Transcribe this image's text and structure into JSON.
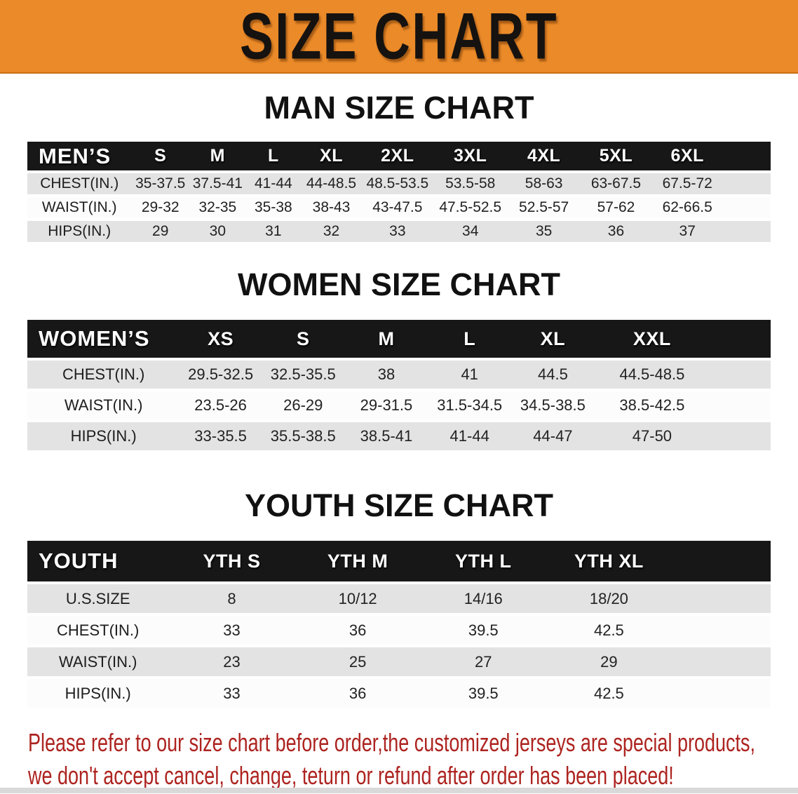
{
  "banner": {
    "title": "SIZE CHART",
    "bg_color": "#EB8A28"
  },
  "sections": {
    "men": {
      "title": "MAN SIZE CHART",
      "header_label": "MEN’S",
      "sizes": [
        "S",
        "M",
        "L",
        "XL",
        "2XL",
        "3XL",
        "4XL",
        "5XL",
        "6XL"
      ],
      "rows": [
        {
          "label": "CHEST(IN.)",
          "values": [
            "35-37.5",
            "37.5-41",
            "41-44",
            "44-48.5",
            "48.5-53.5",
            "53.5-58",
            "58-63",
            "63-67.5",
            "67.5-72"
          ]
        },
        {
          "label": "WAIST(IN.)",
          "values": [
            "29-32",
            "32-35",
            "35-38",
            "38-43",
            "43-47.5",
            "47.5-52.5",
            "52.5-57",
            "57-62",
            "62-66.5"
          ]
        },
        {
          "label": "HIPS(IN.)",
          "values": [
            "29",
            "30",
            "31",
            "32",
            "33",
            "34",
            "35",
            "36",
            "37"
          ]
        }
      ]
    },
    "women": {
      "title": "WOMEN SIZE CHART",
      "header_label": "WOMEN’S",
      "sizes": [
        "XS",
        "S",
        "M",
        "L",
        "XL",
        "XXL"
      ],
      "rows": [
        {
          "label": "CHEST(IN.)",
          "values": [
            "29.5-32.5",
            "32.5-35.5",
            "38",
            "41",
            "44.5",
            "44.5-48.5"
          ]
        },
        {
          "label": "WAIST(IN.)",
          "values": [
            "23.5-26",
            "26-29",
            "29-31.5",
            "31.5-34.5",
            "34.5-38.5",
            "38.5-42.5"
          ]
        },
        {
          "label": "HIPS(IN.)",
          "values": [
            "33-35.5",
            "35.5-38.5",
            "38.5-41",
            "41-44",
            "44-47",
            "47-50"
          ]
        }
      ]
    },
    "youth": {
      "title": "YOUTH SIZE CHART",
      "header_label": "YOUTH",
      "sizes": [
        "YTH S",
        "YTH M",
        "YTH L",
        "YTH XL"
      ],
      "rows": [
        {
          "label": "U.S.SIZE",
          "values": [
            "8",
            "10/12",
            "14/16",
            "18/20"
          ]
        },
        {
          "label": "CHEST(IN.)",
          "values": [
            "33",
            "36",
            "39.5",
            "42.5"
          ]
        },
        {
          "label": "WAIST(IN.)",
          "values": [
            "23",
            "25",
            "27",
            "29"
          ]
        },
        {
          "label": "HIPS(IN.)",
          "values": [
            "33",
            "36",
            "39.5",
            "42.5"
          ]
        }
      ]
    }
  },
  "footer": {
    "line1": "Please refer to our size chart before order,the customized jerseys are special products,",
    "line2": "we don't accept cancel, change, teturn or refund after order has been placed!",
    "text_color": "#AD2420"
  }
}
